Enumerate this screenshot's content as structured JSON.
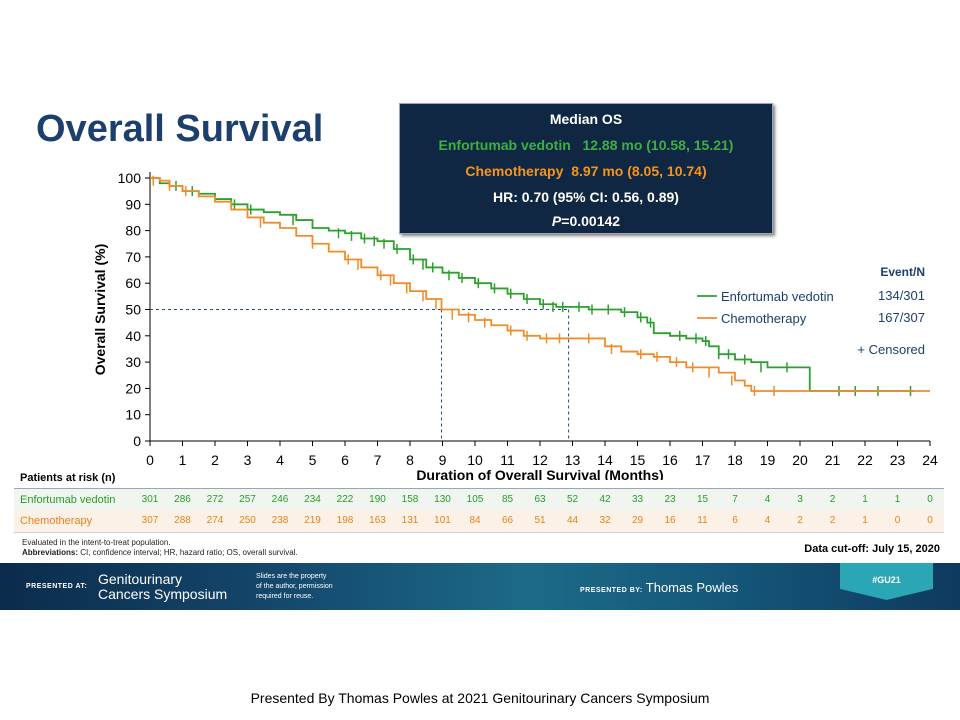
{
  "slide": {
    "title": "Overall Survival",
    "median_box": {
      "title": "Median OS",
      "ev_label": "Enfortumab vedotin",
      "ev_value": "12.88 mo (10.58, 15.21)",
      "chemo_label": "Chemotherapy",
      "chemo_value": "8.97 mo (8.05, 10.74)",
      "hr": "HR: 0.70 (95% CI: 0.56, 0.89)",
      "p_label": "P",
      "p_value": "=0.00142",
      "colors": {
        "ev": "#3cb043",
        "chemo": "#f7941d"
      }
    },
    "risk_table": {
      "title": "Patients at risk (n)",
      "rows": [
        {
          "label": "Enfortumab vedotin",
          "color": "#2a9a2a",
          "values": [
            "301",
            "286",
            "272",
            "257",
            "246",
            "234",
            "222",
            "190",
            "158",
            "130",
            "105",
            "85",
            "63",
            "52",
            "42",
            "33",
            "23",
            "15",
            "7",
            "4",
            "3",
            "2",
            "1",
            "1",
            "0"
          ]
        },
        {
          "label": "Chemotherapy",
          "color": "#e8821a",
          "values": [
            "307",
            "288",
            "274",
            "250",
            "238",
            "219",
            "198",
            "163",
            "131",
            "101",
            "84",
            "66",
            "51",
            "44",
            "32",
            "29",
            "16",
            "11",
            "6",
            "4",
            "2",
            "2",
            "1",
            "0",
            "0"
          ]
        }
      ]
    },
    "footnote_line1": "Evaluated in the intent-to-treat population.",
    "footnote_abbr_label": "Abbreviations:",
    "footnote_abbr_text": " CI, confidence interval; HR, hazard ratio; OS, overall survival.",
    "data_cutoff": "Data cut-off: July 15, 2020",
    "banner": {
      "presented_at": "PRESENTED AT:",
      "meeting_line1": "Genitourinary",
      "meeting_line2": "Cancers Symposium",
      "slides_note_1": "Slides are the property",
      "slides_note_2": "of the author, permission",
      "slides_note_3": "required for reuse.",
      "presented_by_label": "PRESENTED BY:",
      "presenter": "Thomas Powles",
      "hashtag": "#GU21"
    },
    "caption": "Presented By Thomas Powles at 2021 Genitourinary  Cancers Symposium"
  },
  "chart_data": {
    "type": "line",
    "title": "",
    "xlabel": "Duration of Overall Survival (Months)",
    "ylabel": "Overall Survival (%)",
    "xlim": [
      0,
      24
    ],
    "ylim": [
      0,
      100
    ],
    "xticks": [
      "0",
      "1",
      "2",
      "3",
      "4",
      "5",
      "6",
      "7",
      "8",
      "9",
      "10",
      "11",
      "12",
      "13",
      "14",
      "15",
      "16",
      "17",
      "18",
      "19",
      "20",
      "21",
      "22",
      "23",
      "24"
    ],
    "yticks": [
      "0",
      "10",
      "20",
      "30",
      "40",
      "50",
      "60",
      "70",
      "80",
      "90",
      "100"
    ],
    "step": true,
    "legend": {
      "header": "Event/N",
      "censored_label": "+ Censored",
      "position": "right"
    },
    "reference": {
      "y": 50,
      "x_markers": [
        8.97,
        12.88
      ]
    },
    "series": [
      {
        "name": "Enfortumab vedotin",
        "events": "134/301",
        "color": "#2ca02c",
        "x": [
          0,
          0.3,
          0.6,
          1,
          1.5,
          2,
          2.5,
          3,
          3.5,
          4,
          4.5,
          5,
          5.5,
          6,
          6.5,
          7,
          7.5,
          8,
          8.5,
          9,
          9.5,
          10,
          10.5,
          11,
          11.5,
          12,
          12.5,
          13,
          13.5,
          14,
          14.5,
          15,
          15.3,
          15.5,
          16,
          16.5,
          17,
          17.2,
          17.5,
          18,
          18.5,
          19,
          20,
          20.3,
          21,
          22,
          23,
          23.5
        ],
        "y": [
          100,
          98,
          97,
          95,
          94,
          92,
          90,
          88,
          87,
          86,
          84,
          81,
          80,
          79,
          77,
          76,
          73,
          69,
          66,
          64,
          62,
          60,
          58,
          56,
          54,
          52,
          51,
          51,
          50,
          50,
          49,
          47,
          45,
          41,
          40,
          39,
          38,
          36,
          33,
          31,
          30,
          28,
          28,
          19,
          19,
          19,
          19,
          19
        ],
        "censored_x": [
          0.8,
          1.3,
          2.6,
          3.1,
          4.4,
          5.8,
          6.2,
          6.6,
          6.9,
          7.2,
          7.6,
          8.1,
          8.4,
          8.7,
          9.2,
          9.6,
          10.1,
          10.6,
          11.1,
          11.6,
          12.1,
          12.4,
          12.7,
          13.2,
          13.6,
          14.1,
          14.6,
          15.1,
          15.4,
          16.3,
          16.8,
          17.1,
          17.5,
          17.8,
          18.3,
          18.8,
          19.6,
          21.2,
          21.7,
          22.4,
          23.4
        ],
        "censored_y": [
          97,
          95,
          90,
          88,
          84,
          79,
          78,
          77,
          76,
          75,
          73,
          69,
          67,
          66,
          63,
          62,
          60,
          58,
          56,
          54,
          52,
          51,
          51,
          51,
          50,
          50,
          49,
          47,
          45,
          40,
          39,
          38,
          33,
          33,
          31,
          28,
          28,
          19,
          19,
          19,
          19
        ]
      },
      {
        "name": "Chemotherapy",
        "events": "167/307",
        "color": "#f28c28",
        "x": [
          0,
          0.3,
          0.6,
          1,
          1.5,
          2,
          2.5,
          3,
          3.5,
          4,
          4.5,
          5,
          5.5,
          6,
          6.5,
          7,
          7.5,
          8,
          8.5,
          8.97,
          9.5,
          10,
          10.5,
          11,
          11.5,
          12,
          12.5,
          13,
          13.5,
          14,
          14.5,
          15,
          15.5,
          16,
          16.5,
          17,
          17.5,
          18,
          18.3,
          18.5,
          19,
          20,
          21,
          22,
          23,
          24
        ],
        "y": [
          100,
          99,
          97,
          95,
          93,
          91,
          88,
          85,
          83,
          81,
          78,
          75,
          72,
          69,
          66,
          63,
          60,
          57,
          54,
          50,
          48,
          46,
          44,
          42,
          40,
          39,
          39,
          39,
          39,
          36,
          34,
          33,
          32,
          30,
          28,
          28,
          26,
          23,
          21,
          19,
          19,
          19,
          19,
          19,
          19,
          19
        ],
        "censored_x": [
          0.1,
          0.6,
          1.1,
          3.4,
          5.0,
          6.1,
          6.4,
          7.1,
          7.4,
          7.9,
          8.4,
          8.8,
          9.3,
          9.8,
          10.3,
          11.1,
          11.6,
          12.2,
          12.6,
          13.5,
          14.2,
          15.1,
          15.6,
          16.2,
          16.7,
          17.2,
          17.9,
          18.6,
          19.2
        ],
        "censored_y": [
          99,
          97,
          95,
          83,
          75,
          69,
          67,
          63,
          61,
          58,
          55,
          52,
          48,
          47,
          45,
          42,
          40,
          39,
          39,
          39,
          35,
          33,
          32,
          30,
          28,
          26,
          23,
          19,
          19
        ]
      }
    ]
  }
}
